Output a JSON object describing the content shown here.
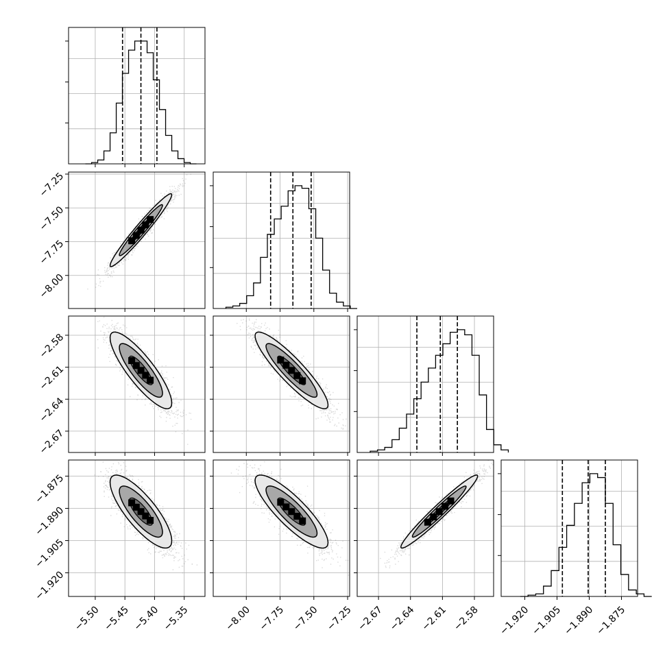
{
  "chart_data": {
    "type": "corner",
    "grid": true,
    "colors": {
      "line": "#000000",
      "grid": "#b0b0b0",
      "points": "#555555",
      "fill_low": "#e8e8e8",
      "fill_mid": "#a8a8a8",
      "fill_high": "#000000"
    },
    "parameters": [
      {
        "range": [
          -5.545,
          -5.315
        ],
        "ticks": [
          -5.5,
          -5.45,
          -5.4,
          -5.35
        ],
        "tick_labels": [
          "−5.50",
          "−5.45",
          "−5.40",
          "−5.35"
        ],
        "quantiles": [
          -5.454,
          -5.423,
          -5.396
        ],
        "mean": -5.423,
        "sd": 0.026
      },
      {
        "range": [
          -8.245,
          -7.235
        ],
        "ticks": [
          -8.0,
          -7.75,
          -7.5,
          -7.25
        ],
        "tick_labels": [
          "−8.00",
          "−7.75",
          "−7.50",
          "−7.25"
        ],
        "quantiles": [
          -7.82,
          -7.655,
          -7.52
        ],
        "mean": -7.665,
        "sd": 0.135
      },
      {
        "range": [
          -2.69,
          -2.562
        ],
        "ticks": [
          -2.67,
          -2.64,
          -2.61,
          -2.58
        ],
        "tick_labels": [
          "−2.67",
          "−2.64",
          "−2.61",
          "−2.58"
        ],
        "quantiles": [
          -2.634,
          -2.612,
          -2.596
        ],
        "mean": -2.613,
        "sd": 0.018
      },
      {
        "range": [
          -1.931,
          -1.8675
        ],
        "ticks": [
          -1.92,
          -1.905,
          -1.89,
          -1.875
        ],
        "tick_labels": [
          "−1.920",
          "−1.905",
          "−1.890",
          "−1.875"
        ],
        "quantiles": [
          -1.9025,
          -1.8905,
          -1.8825
        ],
        "mean": -1.8915,
        "sd": 0.0085
      }
    ],
    "correlations": {
      "1-0": 0.97,
      "2-0": -0.85,
      "2-1": -0.9,
      "3-0": -0.8,
      "3-1": -0.85,
      "3-2": 0.97
    },
    "histograms": [
      [
        0,
        1,
        3,
        10,
        24,
        47,
        70,
        88,
        95,
        95,
        86,
        65,
        42,
        22,
        10,
        4,
        1,
        0
      ],
      [
        1,
        2,
        4,
        10,
        20,
        40,
        58,
        70,
        80,
        92,
        96,
        94,
        78,
        55,
        30,
        12,
        5,
        2,
        0
      ],
      [
        1,
        2,
        4,
        10,
        19,
        30,
        42,
        55,
        66,
        76,
        85,
        94,
        96,
        92,
        76,
        45,
        18,
        6,
        2
      ],
      [
        0,
        1,
        2,
        8,
        20,
        38,
        55,
        72,
        88,
        95,
        92,
        72,
        40,
        17,
        5,
        2,
        0
      ]
    ]
  }
}
